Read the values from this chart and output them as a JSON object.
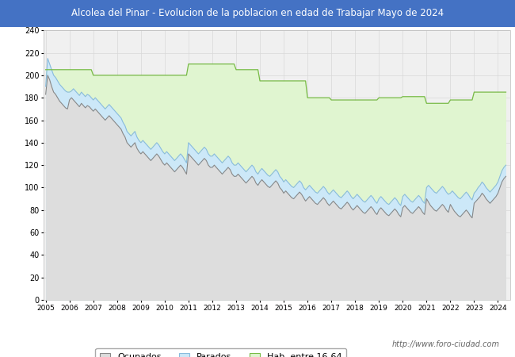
{
  "title": "Alcolea del Pinar - Evolucion de la poblacion en edad de Trabajar Mayo de 2024",
  "title_bg_color": "#4472C4",
  "title_text_color": "white",
  "ylim": [
    0,
    240
  ],
  "yticks": [
    0,
    20,
    40,
    60,
    80,
    100,
    120,
    140,
    160,
    180,
    200,
    220,
    240
  ],
  "xlim_start": 2004.92,
  "xlim_end": 2024.5,
  "xtick_years": [
    2005,
    2006,
    2007,
    2008,
    2009,
    2010,
    2011,
    2012,
    2013,
    2014,
    2015,
    2016,
    2017,
    2018,
    2019,
    2020,
    2021,
    2022,
    2023,
    2024
  ],
  "legend_labels": [
    "Ocupados",
    "Parados",
    "Hab. entre 16-64"
  ],
  "fill_color_ocu": "#dddddd",
  "fill_color_par": "#cce8f8",
  "fill_color_hab": "#e0f5d0",
  "line_color_ocu": "#888888",
  "line_color_par": "#88bbdd",
  "line_color_hab": "#77bb44",
  "watermark": "http://www.foro-ciudad.com",
  "bg_color": "#f0f0f0",
  "grid_color": "#d8d8d8",
  "hab_data": [
    205,
    205,
    205,
    205,
    205,
    205,
    205,
    205,
    205,
    205,
    205,
    205,
    205,
    205,
    205,
    205,
    205,
    205,
    205,
    205,
    205,
    205,
    205,
    205,
    200,
    200,
    200,
    200,
    200,
    200,
    200,
    200,
    200,
    200,
    200,
    200,
    200,
    200,
    200,
    200,
    200,
    200,
    200,
    200,
    200,
    200,
    200,
    200,
    200,
    200,
    200,
    200,
    200,
    200,
    200,
    200,
    200,
    200,
    200,
    200,
    200,
    200,
    200,
    200,
    200,
    200,
    200,
    200,
    200,
    200,
    200,
    200,
    210,
    210,
    210,
    210,
    210,
    210,
    210,
    210,
    210,
    210,
    210,
    210,
    210,
    210,
    210,
    210,
    210,
    210,
    210,
    210,
    210,
    210,
    210,
    210,
    205,
    205,
    205,
    205,
    205,
    205,
    205,
    205,
    205,
    205,
    205,
    205,
    195,
    195,
    195,
    195,
    195,
    195,
    195,
    195,
    195,
    195,
    195,
    195,
    195,
    195,
    195,
    195,
    195,
    195,
    195,
    195,
    195,
    195,
    195,
    195,
    180,
    180,
    180,
    180,
    180,
    180,
    180,
    180,
    180,
    180,
    180,
    180,
    178,
    178,
    178,
    178,
    178,
    178,
    178,
    178,
    178,
    178,
    178,
    178,
    178,
    178,
    178,
    178,
    178,
    178,
    178,
    178,
    178,
    178,
    178,
    178,
    180,
    180,
    180,
    180,
    180,
    180,
    180,
    180,
    180,
    180,
    180,
    180,
    181,
    181,
    181,
    181,
    181,
    181,
    181,
    181,
    181,
    181,
    181,
    181,
    175,
    175,
    175,
    175,
    175,
    175,
    175,
    175,
    175,
    175,
    175,
    175,
    178,
    178,
    178,
    178,
    178,
    178,
    178,
    178,
    178,
    178,
    178,
    178,
    185,
    185,
    185,
    185,
    185,
    185,
    185,
    185,
    185,
    185,
    185,
    185,
    185,
    185,
    185,
    185,
    185
  ],
  "parados_data": [
    190,
    215,
    210,
    205,
    200,
    198,
    195,
    192,
    190,
    188,
    186,
    185,
    185,
    186,
    188,
    186,
    184,
    182,
    185,
    183,
    181,
    183,
    182,
    180,
    178,
    180,
    178,
    176,
    174,
    172,
    170,
    172,
    174,
    172,
    170,
    168,
    166,
    164,
    162,
    158,
    155,
    150,
    148,
    146,
    148,
    150,
    145,
    142,
    140,
    142,
    140,
    138,
    136,
    134,
    136,
    138,
    140,
    138,
    135,
    132,
    130,
    132,
    130,
    128,
    126,
    124,
    126,
    128,
    130,
    128,
    125,
    122,
    140,
    138,
    136,
    134,
    132,
    130,
    132,
    134,
    136,
    134,
    130,
    128,
    128,
    130,
    128,
    126,
    124,
    122,
    124,
    126,
    128,
    126,
    122,
    120,
    120,
    122,
    120,
    118,
    116,
    114,
    116,
    118,
    120,
    118,
    114,
    112,
    115,
    117,
    115,
    113,
    111,
    110,
    112,
    114,
    116,
    114,
    110,
    108,
    105,
    107,
    105,
    103,
    101,
    100,
    102,
    104,
    106,
    104,
    100,
    98,
    100,
    102,
    100,
    98,
    96,
    95,
    97,
    99,
    101,
    99,
    96,
    94,
    96,
    98,
    96,
    94,
    92,
    91,
    93,
    95,
    97,
    95,
    92,
    90,
    92,
    94,
    92,
    90,
    88,
    87,
    89,
    91,
    93,
    91,
    88,
    86,
    90,
    92,
    90,
    88,
    86,
    85,
    87,
    89,
    91,
    89,
    86,
    84,
    92,
    94,
    92,
    90,
    88,
    87,
    89,
    91,
    93,
    91,
    88,
    86,
    100,
    102,
    100,
    98,
    96,
    95,
    97,
    99,
    101,
    99,
    96,
    94,
    95,
    97,
    95,
    93,
    91,
    90,
    92,
    94,
    96,
    94,
    91,
    89,
    95,
    97,
    100,
    102,
    105,
    103,
    100,
    98,
    96,
    98,
    100,
    102,
    105,
    110,
    115,
    118,
    120
  ],
  "ocupados_data": [
    183,
    200,
    196,
    190,
    185,
    183,
    180,
    177,
    175,
    173,
    171,
    170,
    178,
    180,
    178,
    176,
    174,
    172,
    175,
    173,
    171,
    173,
    172,
    170,
    168,
    170,
    168,
    166,
    164,
    162,
    160,
    162,
    164,
    162,
    160,
    158,
    156,
    154,
    152,
    148,
    145,
    140,
    138,
    136,
    138,
    140,
    135,
    132,
    130,
    132,
    130,
    128,
    126,
    124,
    126,
    128,
    130,
    128,
    125,
    122,
    120,
    122,
    120,
    118,
    116,
    114,
    116,
    118,
    120,
    118,
    115,
    112,
    130,
    128,
    126,
    124,
    122,
    120,
    122,
    124,
    126,
    124,
    120,
    118,
    118,
    120,
    118,
    116,
    114,
    112,
    114,
    116,
    118,
    116,
    112,
    110,
    110,
    112,
    110,
    108,
    106,
    104,
    106,
    108,
    110,
    108,
    104,
    102,
    105,
    107,
    105,
    103,
    101,
    100,
    102,
    104,
    106,
    104,
    100,
    98,
    95,
    97,
    95,
    93,
    91,
    90,
    92,
    94,
    96,
    94,
    91,
    88,
    90,
    92,
    90,
    88,
    86,
    85,
    87,
    89,
    91,
    89,
    86,
    84,
    86,
    88,
    86,
    84,
    82,
    81,
    83,
    85,
    87,
    85,
    82,
    80,
    82,
    84,
    82,
    80,
    78,
    77,
    79,
    81,
    83,
    81,
    78,
    76,
    80,
    82,
    80,
    78,
    76,
    75,
    77,
    79,
    81,
    79,
    76,
    74,
    82,
    84,
    82,
    80,
    78,
    77,
    79,
    81,
    83,
    81,
    78,
    76,
    90,
    87,
    84,
    82,
    80,
    79,
    81,
    83,
    85,
    83,
    80,
    78,
    85,
    82,
    79,
    77,
    75,
    74,
    76,
    78,
    80,
    78,
    75,
    73,
    86,
    88,
    90,
    92,
    95,
    93,
    90,
    88,
    86,
    88,
    90,
    92,
    95,
    100,
    105,
    108,
    110
  ]
}
